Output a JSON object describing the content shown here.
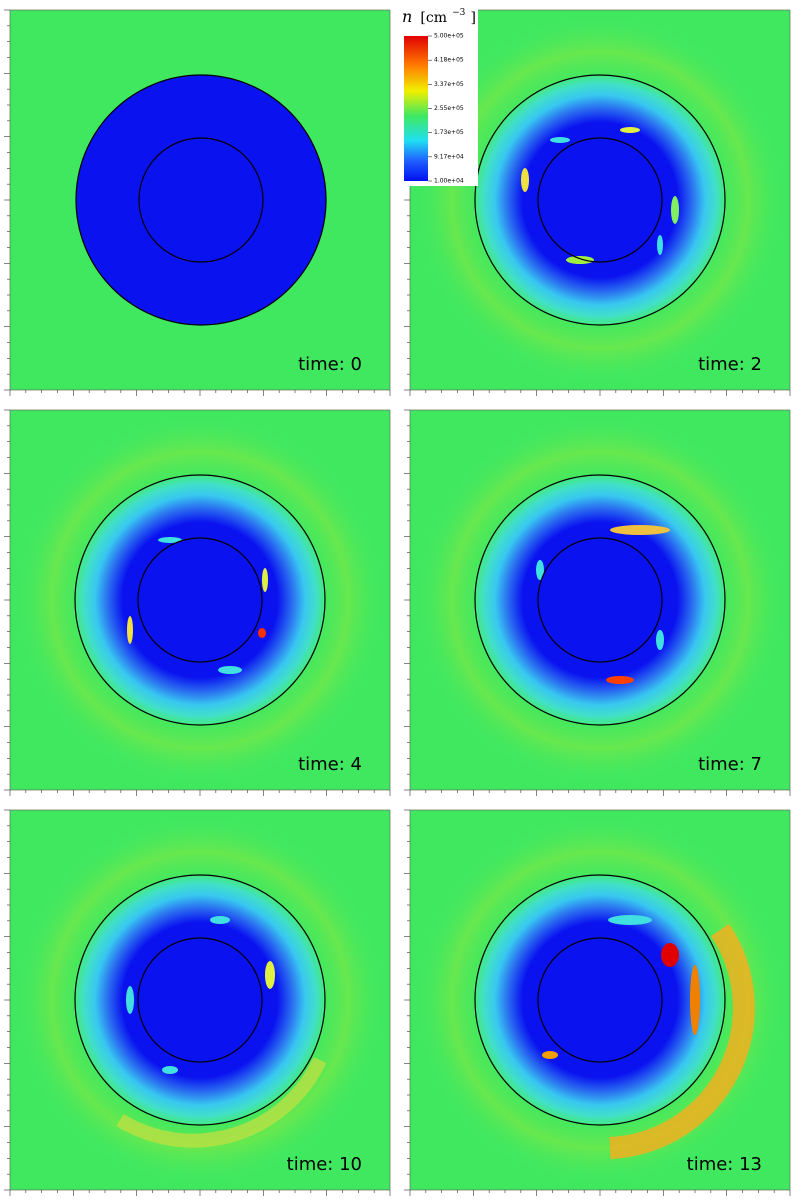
{
  "colorbar": {
    "symbol": "n",
    "unit_open": "[cm",
    "exponent": "−3",
    "unit_close": "]",
    "ticks": [
      "5.00e+05",
      "4.18e+05",
      "3.37e+05",
      "2.55e+05",
      "1.73e+05",
      "9.17e+04",
      "1.00e+04"
    ]
  },
  "panels": [
    {
      "label": "time: 0"
    },
    {
      "label": "time: 2"
    },
    {
      "label": "time: 4"
    },
    {
      "label": "time: 7"
    },
    {
      "label": "time: 10"
    },
    {
      "label": "time: 13"
    }
  ]
}
